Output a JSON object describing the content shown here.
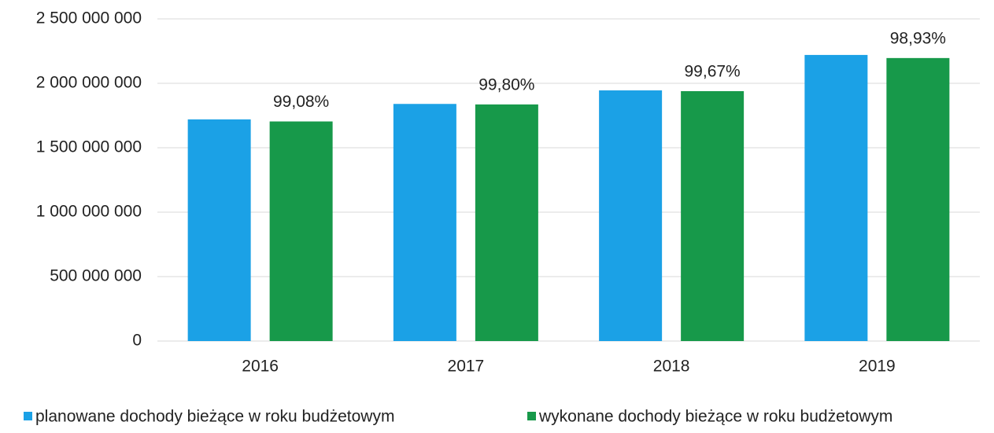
{
  "chart_data": {
    "type": "bar",
    "categories": [
      "2016",
      "2017",
      "2018",
      "2019"
    ],
    "series": [
      {
        "name": "planowane dochody bieżące w roku budżetowym",
        "color": "#1ba1e6",
        "values": [
          1720000000,
          1840000000,
          1945000000,
          2220000000
        ]
      },
      {
        "name": "wykonane dochody bieżące w roku budżetowym",
        "color": "#17994a",
        "values": [
          1704000000,
          1836000000,
          1939000000,
          2196000000
        ]
      }
    ],
    "annotations": [
      "99,08%",
      "99,80%",
      "99,67%",
      "98,93%"
    ],
    "ylim": [
      0,
      2500000000
    ],
    "yticks": [
      0,
      {
        "value": 500000000,
        "label": "500 000 000"
      },
      {
        "value": 1000000000,
        "label": "1 000 000 000"
      },
      {
        "value": 1500000000,
        "label": "1 500 000 000"
      },
      {
        "value": 2000000000,
        "label": "2 000 000 000"
      },
      {
        "value": 2500000000,
        "label": "2 500 000 000"
      }
    ],
    "grid": true,
    "legend": "bottom"
  }
}
